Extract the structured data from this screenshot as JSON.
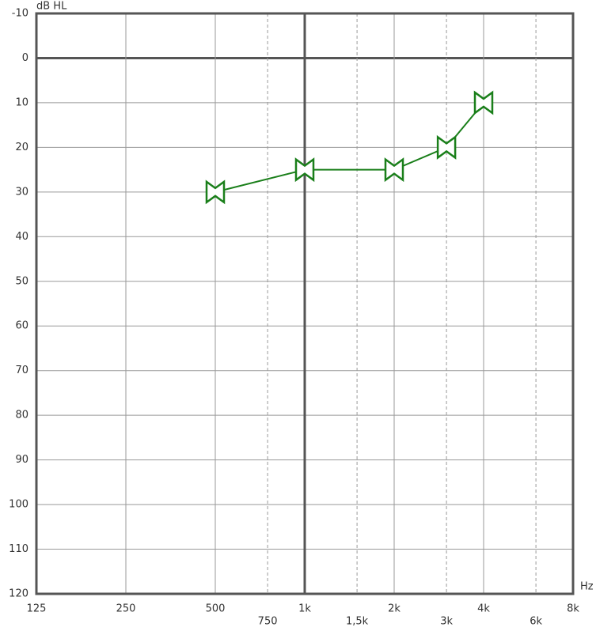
{
  "chart_data": {
    "type": "line",
    "x_label": "Hz",
    "y_label": "dB HL",
    "xscale": "log",
    "xlim": [
      125,
      8000
    ],
    "ylim": [
      -10,
      120
    ],
    "y_inverted": true,
    "xticks": [
      125,
      250,
      500,
      {
        "value": 1000,
        "label": "1k"
      },
      {
        "value": 2000,
        "label": "2k"
      },
      {
        "value": 4000,
        "label": "4k"
      },
      {
        "value": 8000,
        "label": "8k"
      }
    ],
    "xticks_minor": [
      750,
      {
        "value": 1500,
        "label": "1,5k"
      },
      {
        "value": 3000,
        "label": "3k"
      },
      {
        "value": 6000,
        "label": "6k"
      }
    ],
    "yticks": [
      -10,
      0,
      10,
      20,
      30,
      40,
      50,
      60,
      70,
      80,
      90,
      100,
      110,
      120
    ],
    "x_reference": 1000,
    "grid": true,
    "x": [
      500,
      1000,
      2000,
      3000,
      4000
    ],
    "series": [
      {
        "color": "#1a7f1a",
        "values": [
          30,
          25,
          25,
          20,
          10
        ]
      }
    ]
  }
}
